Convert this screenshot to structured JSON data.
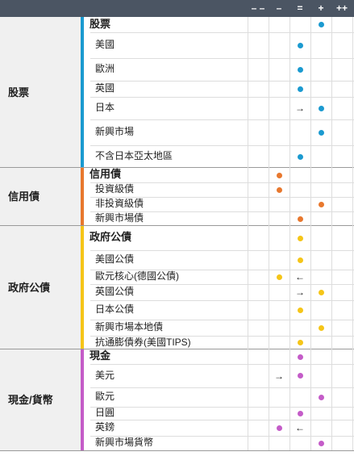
{
  "columns": [
    "– –",
    "–",
    "=",
    "+",
    "++"
  ],
  "colors": {
    "equity": "#1b9ad0",
    "credit": "#e8782e",
    "govt": "#f5c518",
    "cash": "#c45cc8",
    "header": "#4b5563"
  },
  "sections": [
    {
      "key": "equity",
      "category": "股票",
      "rows": [
        {
          "label": "股票",
          "head": true,
          "dot": 3
        },
        {
          "label": "美國",
          "dot": 2
        },
        {
          "label": "歐洲",
          "dot": 2
        },
        {
          "label": "英國",
          "dot": 2
        },
        {
          "label": "日本",
          "dot": 3,
          "arrow": 2,
          "arrow_glyph": "→"
        },
        {
          "label": "新興市場",
          "dot": 3
        },
        {
          "label": "不含日本亞太地區",
          "dot": 2
        }
      ]
    },
    {
      "key": "credit",
      "category": "信用債",
      "rows": [
        {
          "label": "信用債",
          "head": true,
          "dot": 1
        },
        {
          "label": "投資級債",
          "dot": 1
        },
        {
          "label": "非投資級債",
          "dot": 3
        },
        {
          "label": "新興市場債",
          "dot": 2
        }
      ]
    },
    {
      "key": "govt",
      "category": "政府公債",
      "rows": [
        {
          "label": "政府公債",
          "head": true,
          "dot": 2
        },
        {
          "label": "美國公債",
          "dot": 2
        },
        {
          "label": "歐元核心(德國公債)",
          "dot": 1,
          "arrow": 2,
          "arrow_glyph": "←"
        },
        {
          "label": "英國公債",
          "dot": 3,
          "arrow": 2,
          "arrow_glyph": "→"
        },
        {
          "label": "日本公債",
          "dot": 2
        },
        {
          "label": "新興市場本地債",
          "dot": 3
        },
        {
          "label": "抗通膨債券(美國TIPS)",
          "dot": 2
        }
      ]
    },
    {
      "key": "cash",
      "category": "現金/貨幣",
      "rows": [
        {
          "label": "現金",
          "head": true,
          "dot": 2
        },
        {
          "label": "美元",
          "dot": 2,
          "arrow": 1,
          "arrow_glyph": "→"
        },
        {
          "label": "歐元",
          "dot": 3
        },
        {
          "label": "日圓",
          "dot": 2
        },
        {
          "label": "英鎊",
          "dot": 1,
          "arrow": 2,
          "arrow_glyph": "←"
        },
        {
          "label": "新興市場貨幣",
          "dot": 3
        }
      ]
    }
  ]
}
